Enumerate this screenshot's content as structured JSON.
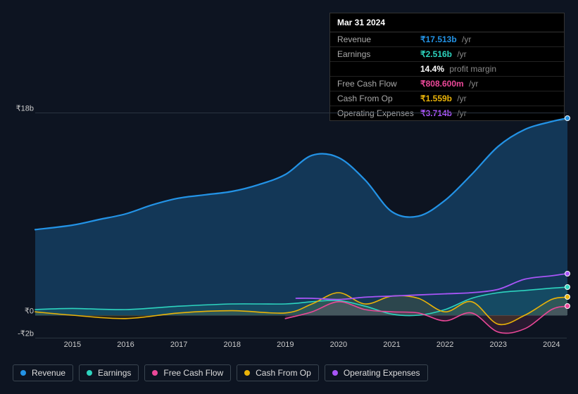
{
  "tooltip": {
    "date": "Mar 31 2024",
    "rows": [
      {
        "label": "Revenue",
        "value": "₹17.513b",
        "suffix": "/yr",
        "color": "#2393e6"
      },
      {
        "label": "Earnings",
        "value": "₹2.516b",
        "suffix": "/yr",
        "color": "#2dd4bf"
      },
      {
        "label": "",
        "value": "14.4%",
        "suffix": "profit margin",
        "color": "#ffffff"
      },
      {
        "label": "Free Cash Flow",
        "value": "₹808.600m",
        "suffix": "/yr",
        "color": "#ec4899"
      },
      {
        "label": "Cash From Op",
        "value": "₹1.559b",
        "suffix": "/yr",
        "color": "#eab308"
      },
      {
        "label": "Operating Expenses",
        "value": "₹3.714b",
        "suffix": "/yr",
        "color": "#a855f7"
      }
    ]
  },
  "chart": {
    "type": "area-line",
    "background_color": "#0d1421",
    "grid_color": "#2a3440",
    "axis_text_color": "#cccccc",
    "x_range": [
      2014.3,
      2024.3
    ],
    "y_range": [
      -2,
      18
    ],
    "y_ticks": [
      {
        "v": 18,
        "label": "₹18b"
      },
      {
        "v": 0,
        "label": "₹0"
      },
      {
        "v": -2,
        "label": "-₹2b"
      }
    ],
    "x_ticks": [
      2015,
      2016,
      2017,
      2018,
      2019,
      2020,
      2021,
      2022,
      2023,
      2024
    ],
    "series": [
      {
        "name": "Revenue",
        "color": "#2393e6",
        "fill": true,
        "fill_opacity": 0.28,
        "line_width": 2.2,
        "end_marker_color": "#2393e6",
        "x": [
          2014.3,
          2015,
          2015.5,
          2016,
          2016.5,
          2017,
          2017.5,
          2018,
          2018.5,
          2019,
          2019.5,
          2020,
          2020.5,
          2021,
          2021.5,
          2022,
          2022.5,
          2023,
          2023.5,
          2024,
          2024.3
        ],
        "y": [
          7.6,
          8.0,
          8.5,
          9.0,
          9.8,
          10.4,
          10.7,
          11.0,
          11.6,
          12.5,
          14.2,
          14.0,
          12.0,
          9.2,
          8.8,
          10.2,
          12.5,
          15.0,
          16.5,
          17.2,
          17.5
        ]
      },
      {
        "name": "Earnings",
        "color": "#2dd4bf",
        "fill": true,
        "fill_opacity": 0.12,
        "line_width": 1.6,
        "end_marker_color": "#2dd4bf",
        "x": [
          2014.3,
          2015,
          2016,
          2017,
          2018,
          2019,
          2019.5,
          2020,
          2020.5,
          2021,
          2021.5,
          2022,
          2022.5,
          2023,
          2023.5,
          2024,
          2024.3
        ],
        "y": [
          0.5,
          0.6,
          0.5,
          0.8,
          1.0,
          1.0,
          1.2,
          1.3,
          0.8,
          0.1,
          0.0,
          0.5,
          1.5,
          2.0,
          2.2,
          2.4,
          2.5
        ]
      },
      {
        "name": "Free Cash Flow",
        "color": "#ec4899",
        "fill": true,
        "fill_opacity": 0.12,
        "line_width": 1.6,
        "end_marker_color": "#ec4899",
        "x": [
          2019,
          2019.5,
          2020,
          2020.5,
          2021,
          2021.5,
          2022,
          2022.5,
          2023,
          2023.5,
          2024,
          2024.3
        ],
        "y": [
          -0.3,
          0.3,
          1.2,
          0.5,
          0.3,
          0.2,
          -0.5,
          0.2,
          -1.5,
          -1.2,
          0.5,
          0.8
        ]
      },
      {
        "name": "Cash From Op",
        "color": "#eab308",
        "fill": true,
        "fill_opacity": 0.12,
        "line_width": 1.6,
        "end_marker_color": "#eab308",
        "x": [
          2014.3,
          2015,
          2016,
          2017,
          2018,
          2019,
          2019.5,
          2020,
          2020.5,
          2021,
          2021.5,
          2022,
          2022.5,
          2023,
          2023.5,
          2024,
          2024.3
        ],
        "y": [
          0.3,
          0.0,
          -0.3,
          0.2,
          0.4,
          0.2,
          1.0,
          2.0,
          1.0,
          1.7,
          1.5,
          0.3,
          1.2,
          -0.8,
          0.0,
          1.4,
          1.6
        ]
      },
      {
        "name": "Operating Expenses",
        "color": "#a855f7",
        "fill": false,
        "line_width": 1.8,
        "end_marker_color": "#a855f7",
        "x": [
          2019.2,
          2019.5,
          2020,
          2020.5,
          2021,
          2021.5,
          2022,
          2022.5,
          2023,
          2023.5,
          2024,
          2024.3
        ],
        "y": [
          1.5,
          1.5,
          1.4,
          1.6,
          1.7,
          1.8,
          1.9,
          2.0,
          2.3,
          3.2,
          3.5,
          3.7
        ]
      }
    ]
  },
  "legend": [
    {
      "label": "Revenue",
      "color": "#2393e6"
    },
    {
      "label": "Earnings",
      "color": "#2dd4bf"
    },
    {
      "label": "Free Cash Flow",
      "color": "#ec4899"
    },
    {
      "label": "Cash From Op",
      "color": "#eab308"
    },
    {
      "label": "Operating Expenses",
      "color": "#a855f7"
    }
  ]
}
